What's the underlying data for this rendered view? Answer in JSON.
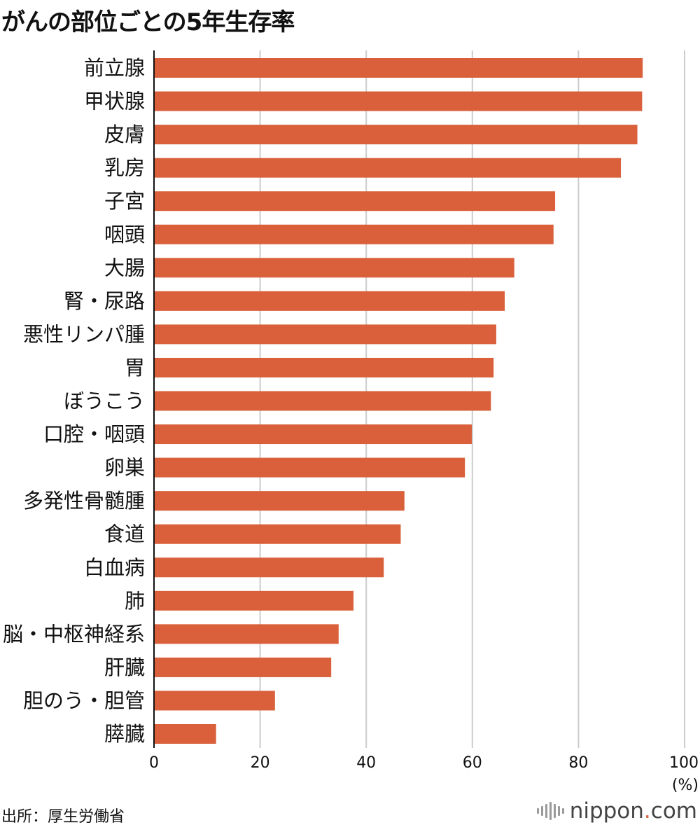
{
  "title": "がんの部位ごとの5年生存率",
  "source": "出所：厚生労働省",
  "brand": {
    "name": "nippon",
    "dot": ".",
    "tld": "com"
  },
  "colors": {
    "bar": "#d9603b",
    "grid": "#cccccc",
    "axis": "#111111"
  },
  "chart_data": {
    "type": "bar",
    "orientation": "horizontal",
    "title": "がんの部位ごとの5年生存率",
    "xlabel": "(%)",
    "xlim": [
      0,
      100
    ],
    "xticks": [
      0,
      20,
      40,
      60,
      80,
      100
    ],
    "grid": true,
    "categories": [
      "前立腺",
      "甲状腺",
      "皮膚",
      "乳房",
      "子宮",
      "咽頭",
      "大腸",
      "腎・尿路",
      "悪性リンパ腫",
      "胃",
      "ぼうこう",
      "口腔・咽頭",
      "卵巣",
      "多発性骨髄腫",
      "食道",
      "白血病",
      "肺",
      "脳・中枢神経系",
      "肝臓",
      "胆のう・胆管",
      "膵臓"
    ],
    "values": [
      92.1,
      92.0,
      91.1,
      88.0,
      75.6,
      75.3,
      67.9,
      66.1,
      64.5,
      64.0,
      63.5,
      59.9,
      58.6,
      47.2,
      46.5,
      43.3,
      37.6,
      34.8,
      33.4,
      22.8,
      11.7
    ]
  }
}
